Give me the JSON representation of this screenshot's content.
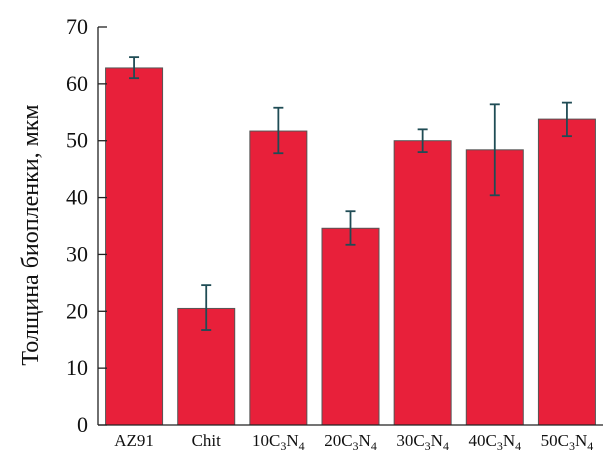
{
  "chart_data": {
    "type": "bar",
    "title": "",
    "xlabel": "",
    "ylabel": "Толщина биопленки, мкм",
    "ylim": [
      0,
      70
    ],
    "yticks": [
      0,
      10,
      20,
      30,
      40,
      50,
      60,
      70
    ],
    "grid": false,
    "legend": "none",
    "bar_color": "#e8203a",
    "error_color": "#1f4c55",
    "categories": [
      {
        "label": "AZ91",
        "value": 62.8,
        "err_low": 61.0,
        "err_high": 64.7
      },
      {
        "label": "Chit",
        "value": 20.5,
        "err_low": 16.7,
        "err_high": 24.6
      },
      {
        "label": "10C3N4",
        "prefix": "10",
        "value": 51.7,
        "err_low": 47.8,
        "err_high": 55.8
      },
      {
        "label": "20C3N4",
        "prefix": "20",
        "value": 34.6,
        "err_low": 31.7,
        "err_high": 37.6
      },
      {
        "label": "30C3N4",
        "prefix": "30",
        "value": 50.0,
        "err_low": 48.0,
        "err_high": 52.0
      },
      {
        "label": "40C3N4",
        "prefix": "40",
        "value": 48.4,
        "err_low": 40.4,
        "err_high": 56.4
      },
      {
        "label": "50C3N4",
        "prefix": "50",
        "value": 53.8,
        "err_low": 50.8,
        "err_high": 56.7
      }
    ]
  }
}
